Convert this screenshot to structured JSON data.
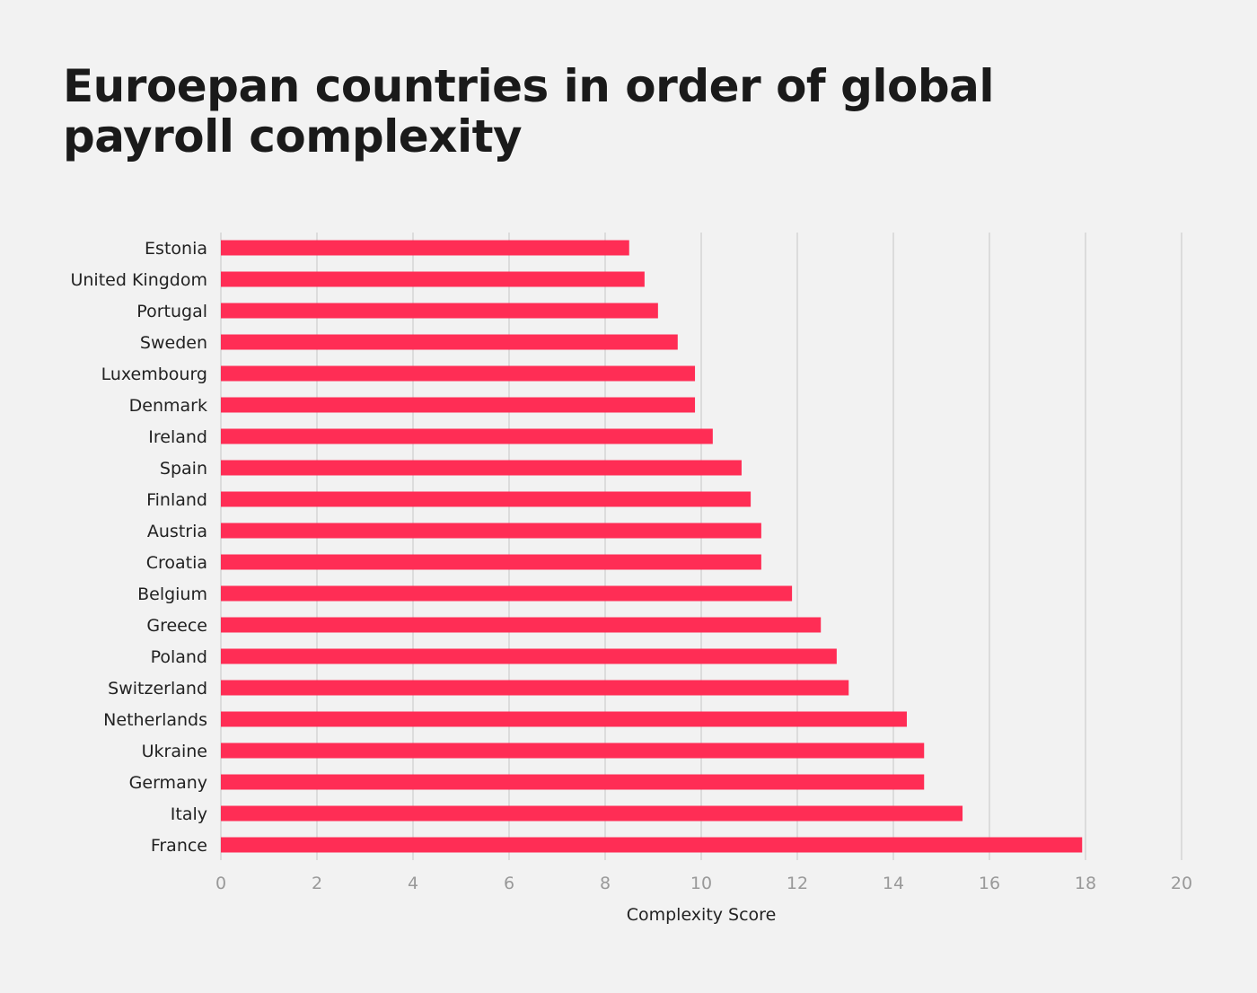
{
  "chart_data": {
    "type": "bar",
    "orientation": "horizontal",
    "title": "Euroepan countries in order of global payroll complexity",
    "xlabel": "Complexity Score",
    "ylabel": "",
    "xlim": [
      0,
      20
    ],
    "xticks": [
      0,
      2,
      4,
      6,
      8,
      10,
      12,
      14,
      16,
      18,
      20
    ],
    "grid": true,
    "bar_color": "#ff2d55",
    "categories": [
      "Estonia",
      "United Kingdom",
      "Portugal",
      "Sweden",
      "Luxembourg",
      "Denmark",
      "Ireland",
      "Spain",
      "Finland",
      "Austria",
      "Croatia",
      "Belgium",
      "Greece",
      "Poland",
      "Switzerland",
      "Netherlands",
      "Ukraine",
      "Germany",
      "Italy",
      "France"
    ],
    "values": [
      8.5,
      8.82,
      9.1,
      9.51,
      9.87,
      9.87,
      10.24,
      10.84,
      11.03,
      11.25,
      11.25,
      11.89,
      12.49,
      12.82,
      13.07,
      14.28,
      14.64,
      14.64,
      15.44,
      17.93
    ]
  }
}
